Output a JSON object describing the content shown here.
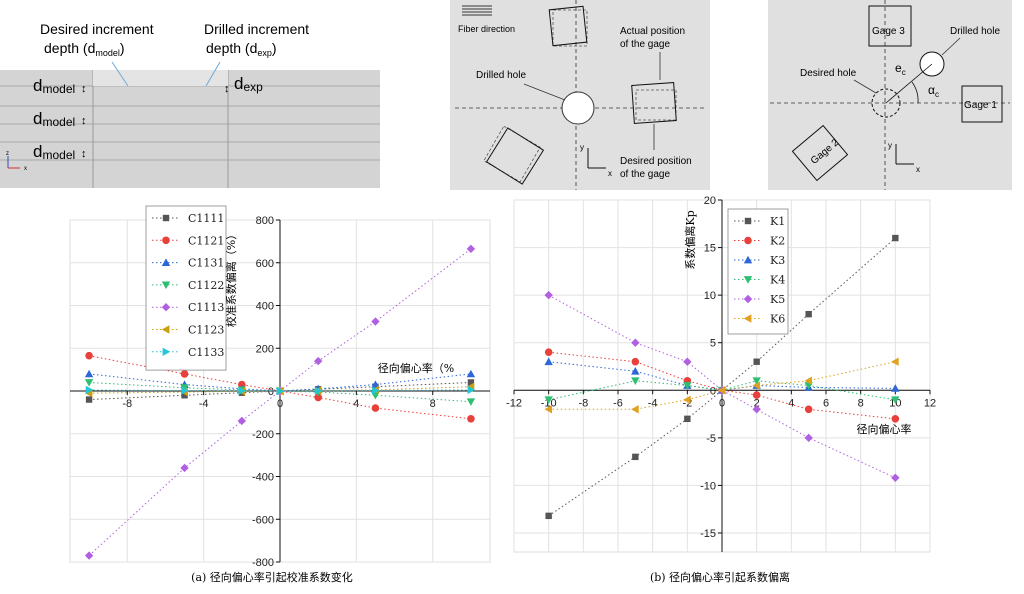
{
  "schematics": {
    "depth_panel": {
      "desired_label_line1": "Desired increment",
      "desired_label_line2": "depth (d",
      "desired_label_sub": "model",
      "drilled_label_line1": "Drilled increment",
      "drilled_label_line2": "depth (d",
      "drilled_label_sub": "exp",
      "paren_close": ")",
      "d_main": "d",
      "model_sub": "model",
      "exp_sub": "exp",
      "axis_z": "z",
      "axis_x": "x"
    },
    "fiber_panel": {
      "fiber_direction": "Fiber direction",
      "drilled_hole": "Drilled hole",
      "actual_position_line1": "Actual position",
      "actual_position_line2": "of the gage",
      "desired_position_line1": "Desired position",
      "desired_position_line2": "of the gage",
      "axis_y": "y",
      "axis_x": "x"
    },
    "gage_panel": {
      "gage1": "Gage 1",
      "gage2": "Gage 2",
      "gage3": "Gage 3",
      "drilled_hole": "Drilled hole",
      "desired_hole": "Desired hole",
      "ec_main": "e",
      "ec_sub": "c",
      "alpha_main": "α",
      "alpha_sub": "c",
      "axis_y": "y",
      "axis_x": "x"
    }
  },
  "chart_data": [
    {
      "type": "scatter",
      "caption": "(a) 径向偏心率引起校准系数变化",
      "xlabel": "径向偏心率（%",
      "ylabel": "校准系数偏离（%）",
      "xlim": [
        -11,
        11
      ],
      "ylim": [
        -800,
        800
      ],
      "x_ticks": [
        -8,
        -4,
        0,
        4,
        8
      ],
      "y_ticks": [
        -800,
        -600,
        -400,
        -200,
        0,
        200,
        400,
        600,
        800
      ],
      "grid": true,
      "legend_position": "top-left",
      "series": [
        {
          "name": "C1111",
          "color": "#555555",
          "marker": "square",
          "x": [
            -10,
            -5,
            -2,
            0,
            2,
            5,
            10
          ],
          "y": [
            -40,
            -20,
            -8,
            0,
            8,
            20,
            40
          ]
        },
        {
          "name": "C1121",
          "color": "#e8413c",
          "marker": "circle",
          "x": [
            -10,
            -5,
            -2,
            0,
            2,
            5,
            10
          ],
          "y": [
            165,
            80,
            30,
            0,
            -30,
            -80,
            -130
          ]
        },
        {
          "name": "C1131",
          "color": "#2f67d6",
          "marker": "triangle-up",
          "x": [
            -10,
            -5,
            -2,
            0,
            2,
            5,
            10
          ],
          "y": [
            80,
            30,
            10,
            0,
            10,
            30,
            80
          ]
        },
        {
          "name": "C1122",
          "color": "#2fbf71",
          "marker": "triangle-down",
          "x": [
            -10,
            -5,
            -2,
            0,
            2,
            5,
            10
          ],
          "y": [
            40,
            15,
            5,
            0,
            -5,
            -20,
            -50
          ]
        },
        {
          "name": "C1113",
          "color": "#b060e0",
          "marker": "diamond",
          "x": [
            -10,
            -5,
            -2,
            0,
            2,
            5,
            10
          ],
          "y": [
            -770,
            -360,
            -140,
            0,
            140,
            325,
            665
          ]
        },
        {
          "name": "C1123",
          "color": "#c8a010",
          "marker": "triangle-left",
          "x": [
            -10,
            -5,
            -2,
            0,
            2,
            5,
            10
          ],
          "y": [
            -10,
            -5,
            -2,
            0,
            2,
            5,
            20
          ]
        },
        {
          "name": "C1133",
          "color": "#22c6d6",
          "marker": "triangle-right",
          "x": [
            -10,
            -5,
            -2,
            0,
            2,
            5,
            10
          ],
          "y": [
            5,
            2,
            1,
            0,
            1,
            2,
            5
          ]
        }
      ]
    },
    {
      "type": "scatter",
      "caption": "(b) 径向偏心率引起系数偏离",
      "xlabel": "径向偏心率",
      "ylabel": "系数偏离Kp",
      "xlim": [
        -12,
        12
      ],
      "ylim": [
        -17,
        20
      ],
      "x_ticks": [
        -12,
        -10,
        -8,
        -6,
        -4,
        -2,
        0,
        2,
        4,
        6,
        8,
        10,
        12
      ],
      "y_ticks": [
        -15,
        -10,
        -5,
        0,
        5,
        10,
        15,
        20
      ],
      "grid": true,
      "legend_position": "top-left",
      "series": [
        {
          "name": "K1",
          "color": "#555555",
          "marker": "square",
          "x": [
            -10,
            -5,
            -2,
            0,
            2,
            5,
            10
          ],
          "y": [
            -13.2,
            -7.0,
            -3.0,
            0,
            3.0,
            8.0,
            16.0
          ]
        },
        {
          "name": "K2",
          "color": "#e8413c",
          "marker": "circle",
          "x": [
            -10,
            -5,
            -2,
            0,
            2,
            5,
            10
          ],
          "y": [
            4.0,
            3.0,
            1.0,
            0,
            -0.5,
            -2.0,
            -3.0
          ]
        },
        {
          "name": "K3",
          "color": "#2f67d6",
          "marker": "triangle-up",
          "x": [
            -10,
            -5,
            -2,
            0,
            2,
            5,
            10
          ],
          "y": [
            3.0,
            2.0,
            0.5,
            0,
            0.5,
            0.3,
            0.2
          ]
        },
        {
          "name": "K4",
          "color": "#2fbf71",
          "marker": "triangle-down",
          "x": [
            -10,
            -5,
            -2,
            0,
            2,
            5,
            10
          ],
          "y": [
            -1.0,
            1.0,
            0.5,
            0,
            1.0,
            0.5,
            -1.0
          ]
        },
        {
          "name": "K5",
          "color": "#b060e0",
          "marker": "diamond",
          "x": [
            -10,
            -5,
            -2,
            0,
            2,
            5,
            10
          ],
          "y": [
            10.0,
            5.0,
            3.0,
            0,
            -2.0,
            -5.0,
            -9.2
          ]
        },
        {
          "name": "K6",
          "color": "#e0a020",
          "marker": "triangle-left",
          "x": [
            -10,
            -5,
            -2,
            0,
            2,
            5,
            10
          ],
          "y": [
            -2.0,
            -2.0,
            -1.0,
            0,
            0.5,
            1.0,
            3.0
          ]
        }
      ]
    }
  ]
}
